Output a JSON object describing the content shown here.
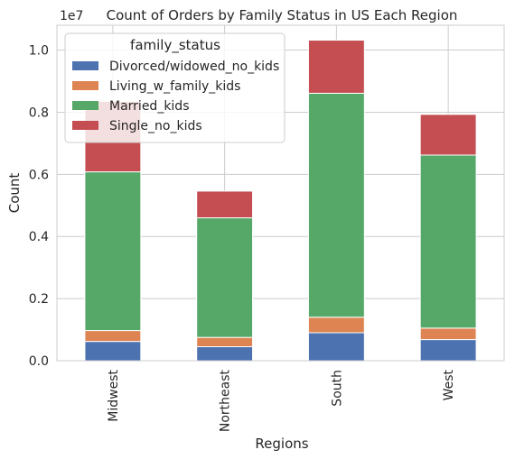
{
  "chart_data": {
    "type": "bar",
    "stacked": true,
    "title": "Count of Orders by Family Status in US Each Region",
    "xlabel": "Regions",
    "ylabel": "Count",
    "y_offset_label": "1e7",
    "categories": [
      "Midwest",
      "Northeast",
      "South",
      "West"
    ],
    "ylim": [
      0,
      1.08
    ],
    "yticks": [
      "0.0",
      "0.2",
      "0.4",
      "0.6",
      "0.8",
      "1.0"
    ],
    "grid": true,
    "legend_title": "family_status",
    "legend_position": "top-left",
    "series": [
      {
        "name": "Divorced/widowed_no_kids",
        "color": "#4c72b0",
        "values": [
          0.062,
          0.045,
          0.09,
          0.068
        ]
      },
      {
        "name": "Living_w_family_kids",
        "color": "#dd8452",
        "values": [
          0.035,
          0.03,
          0.05,
          0.037
        ]
      },
      {
        "name": "Married_kids",
        "color": "#55a868",
        "values": [
          0.511,
          0.385,
          0.721,
          0.557
        ]
      },
      {
        "name": "Single_no_kids",
        "color": "#c44e52",
        "values": [
          0.227,
          0.086,
          0.171,
          0.131
        ]
      }
    ]
  }
}
